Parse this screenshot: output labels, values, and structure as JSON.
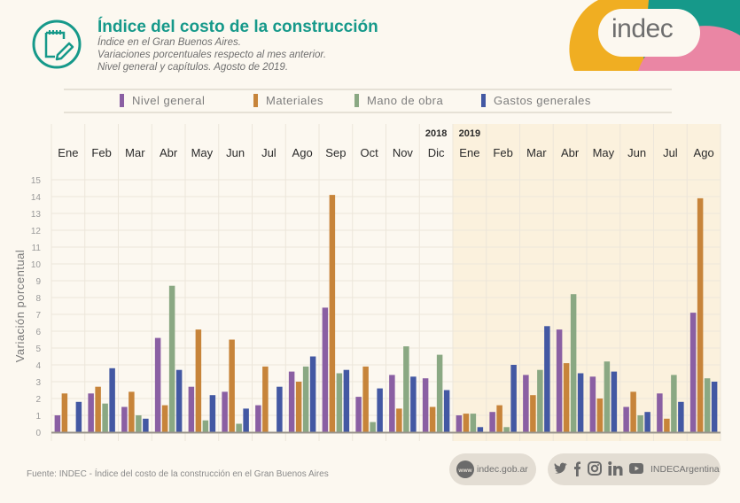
{
  "header": {
    "title": "Índice del costo de la construcción",
    "subtitle_lines": [
      "Índice en el Gran Buenos Aires.",
      "Variaciones porcentuales respecto al mes anterior.",
      "Nivel general y capítulos. Agosto de 2019."
    ],
    "icon": "notepad-pencil-icon",
    "brand": "indec"
  },
  "colors": {
    "title": "#16998a",
    "nivel_general": "#8a5fa3",
    "materiales": "#c7843a",
    "mano_de_obra": "#8aa883",
    "gastos_generales": "#4358a3",
    "brand_teal": "#16998a",
    "brand_yellow": "#f0ae22",
    "brand_pink": "#ea86a4"
  },
  "legend": [
    {
      "label": "Nivel general",
      "color": "#8a5fa3"
    },
    {
      "label": "Materiales",
      "color": "#c7843a"
    },
    {
      "label": "Mano de obra",
      "color": "#8aa883"
    },
    {
      "label": "Gastos generales",
      "color": "#4358a3"
    }
  ],
  "chart_data": {
    "type": "bar",
    "title": "Índice del costo de la construcción",
    "xlabel": "",
    "ylabel": "Variación porcentual",
    "ylim": [
      0,
      15
    ],
    "yticks": [
      0,
      1,
      2,
      3,
      4,
      5,
      6,
      7,
      8,
      9,
      10,
      11,
      12,
      13,
      14,
      15
    ],
    "grid": true,
    "legend_position": "top",
    "year_labels": [
      {
        "label": "2018",
        "at_category_index": 11
      },
      {
        "label": "2019",
        "at_category_index": 12
      }
    ],
    "categories": [
      "Ene",
      "Feb",
      "Mar",
      "Abr",
      "May",
      "Jun",
      "Jul",
      "Ago",
      "Sep",
      "Oct",
      "Nov",
      "Dic",
      "Ene",
      "Feb",
      "Mar",
      "Abr",
      "May",
      "Jun",
      "Jul",
      "Ago"
    ],
    "series": [
      {
        "name": "Nivel general",
        "values": [
          1.0,
          2.3,
          1.5,
          5.6,
          2.7,
          2.4,
          1.6,
          3.6,
          7.4,
          2.1,
          3.4,
          3.2,
          1.0,
          1.2,
          3.4,
          6.1,
          3.3,
          1.5,
          2.3,
          7.1
        ]
      },
      {
        "name": "Materiales",
        "values": [
          2.3,
          2.7,
          2.4,
          1.6,
          6.1,
          5.5,
          3.9,
          3.0,
          14.1,
          3.9,
          1.4,
          1.5,
          1.1,
          1.6,
          2.2,
          4.1,
          2.0,
          2.4,
          0.8,
          13.9
        ]
      },
      {
        "name": "Mano de obra",
        "values": [
          0.0,
          1.7,
          1.0,
          8.7,
          0.7,
          0.5,
          0.0,
          3.9,
          3.5,
          0.6,
          5.1,
          4.6,
          1.1,
          0.3,
          3.7,
          8.2,
          4.2,
          1.0,
          3.4,
          3.2
        ]
      },
      {
        "name": "Gastos generales",
        "values": [
          1.8,
          3.8,
          0.8,
          3.7,
          2.2,
          1.4,
          2.7,
          4.5,
          3.7,
          2.6,
          3.3,
          2.5,
          0.3,
          4.0,
          6.3,
          3.5,
          3.6,
          1.2,
          1.8,
          3.0
        ]
      }
    ]
  },
  "footer": {
    "source": "Fuente: INDEC - Índice del costo de la construcción en el Gran Buenos Aires",
    "website": "indec.gob.ar",
    "website_icon": "www-globe-icon",
    "social_handle": "INDECArgentina",
    "social_icons": [
      "twitter-icon",
      "facebook-icon",
      "instagram-icon",
      "linkedin-icon",
      "youtube-icon"
    ]
  }
}
